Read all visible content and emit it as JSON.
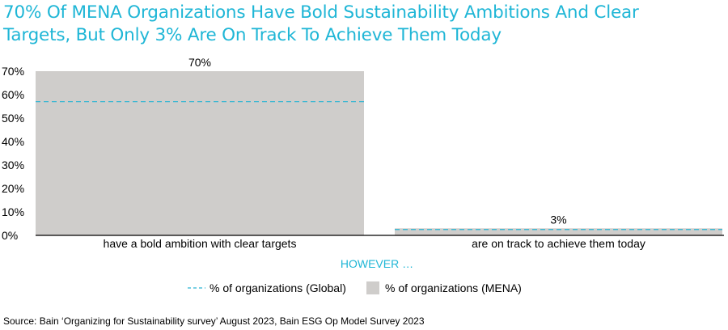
{
  "title_line1": "70% Of MENA Organizations Have Bold Sustainability Ambitions And Clear",
  "title_line2": "Targets, But Only 3% Are On Track To Achieve Them Today",
  "source": "Source: Bain ‘Organizing for Sustainability survey’ August 2023, Bain ESG Op Model Survey 2023",
  "colors": {
    "title": "#1fb6d6",
    "mena_bar": "#cfcdcb",
    "global_line": "#2bb5d4",
    "connector_text": "#1fb6d6"
  },
  "chart_data": {
    "type": "bar",
    "title": "70% Of MENA Organizations Have Bold Sustainability Ambitions And Clear Targets, But Only 3% Are On Track To Achieve Them Today",
    "categories": [
      "have a bold ambition with clear targets",
      "are on track to achieve them today"
    ],
    "series": [
      {
        "name": "% of organizations (MENA)",
        "kind": "bar",
        "values": [
          70,
          3
        ],
        "labels": [
          "70%",
          "3%"
        ]
      },
      {
        "name": "% of organizations (Global)",
        "kind": "dashed-line",
        "values": [
          57,
          2.5
        ]
      }
    ],
    "y_ticks": [
      "0%",
      "10%",
      "20%",
      "30%",
      "40%",
      "50%",
      "60%",
      "70%"
    ],
    "ylim": [
      0,
      70
    ],
    "connector_text": "HOWEVER …",
    "legend": {
      "position": "bottom-center",
      "items": [
        {
          "label": "% of organizations (Global)",
          "style": "dashed"
        },
        {
          "label": "% of organizations (MENA)",
          "style": "box"
        }
      ]
    },
    "grid": false
  }
}
